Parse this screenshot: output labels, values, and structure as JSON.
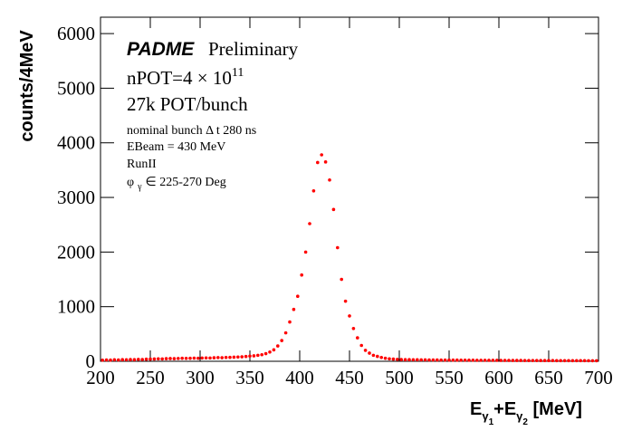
{
  "chart_data": {
    "type": "histogram",
    "annotations": {
      "experiment": "PADME",
      "status": "Preliminary",
      "npot": "nPOT=4 × 10",
      "npot_exp": "11",
      "pot_bunch": "27k POT/bunch",
      "bunch": "nominal bunch Δ t 280 ns",
      "ebeam": "EBeam = 430 MeV",
      "run": "RunII",
      "phi": "φ",
      "phi_sub": "γ",
      "phi_range": "∈ 225-270 Deg"
    },
    "y_label": "counts/4MeV",
    "x_label": {
      "e1": "E",
      "g1": "γ",
      "n1": "1",
      "plus": "+E",
      "g2": "γ",
      "n2": "2",
      "unit": " [MeV]"
    },
    "color": "#ff0000",
    "xlim": [
      200,
      700
    ],
    "xticks": [
      200,
      250,
      300,
      350,
      400,
      450,
      500,
      550,
      600,
      650,
      700
    ],
    "ylim": [
      0,
      6300
    ],
    "yticks": [
      0,
      1000,
      2000,
      3000,
      4000,
      5000,
      6000
    ],
    "bins": [
      200,
      204,
      208,
      212,
      216,
      220,
      224,
      228,
      232,
      236,
      240,
      244,
      248,
      252,
      256,
      260,
      264,
      268,
      272,
      276,
      280,
      284,
      288,
      292,
      296,
      300,
      304,
      308,
      312,
      316,
      320,
      324,
      328,
      332,
      336,
      340,
      344,
      348,
      352,
      356,
      360,
      364,
      368,
      372,
      376,
      380,
      384,
      388,
      392,
      396,
      400,
      404,
      408,
      412,
      416,
      420,
      424,
      428,
      432,
      436,
      440,
      444,
      448,
      452,
      456,
      460,
      464,
      468,
      472,
      476,
      480,
      484,
      488,
      492,
      496,
      500,
      504,
      508,
      512,
      516,
      520,
      524,
      528,
      532,
      536,
      540,
      544,
      548,
      552,
      556,
      560,
      564,
      568,
      572,
      576,
      580,
      584,
      588,
      592,
      596,
      600,
      604,
      608,
      612,
      616,
      620,
      624,
      628,
      632,
      636,
      640,
      644,
      648,
      652,
      656,
      660,
      664,
      668,
      672,
      676,
      680,
      684,
      688,
      692,
      696,
      700
    ],
    "values": [
      20,
      25,
      22,
      28,
      25,
      30,
      28,
      32,
      30,
      35,
      33,
      38,
      40,
      42,
      45,
      43,
      48,
      50,
      48,
      52,
      55,
      53,
      55,
      58,
      56,
      60,
      62,
      60,
      65,
      68,
      66,
      70,
      72,
      75,
      78,
      82,
      88,
      95,
      100,
      110,
      120,
      140,
      170,
      210,
      280,
      380,
      520,
      720,
      950,
      1190,
      1580,
      2000,
      2520,
      3120,
      3640,
      3780,
      3650,
      3320,
      2780,
      2080,
      1500,
      1100,
      830,
      600,
      430,
      290,
      200,
      150,
      110,
      90,
      70,
      55,
      45,
      40,
      35,
      32,
      30,
      30,
      28,
      28,
      26,
      26,
      25,
      24,
      24,
      23,
      22,
      22,
      21,
      21,
      20,
      20,
      19,
      19,
      18,
      18,
      18,
      17,
      17,
      17,
      16,
      16,
      16,
      15,
      15,
      15,
      14,
      14,
      14,
      14,
      13,
      13,
      13,
      13,
      12,
      12,
      12,
      12,
      11,
      11,
      11,
      11,
      10,
      10,
      10
    ]
  }
}
